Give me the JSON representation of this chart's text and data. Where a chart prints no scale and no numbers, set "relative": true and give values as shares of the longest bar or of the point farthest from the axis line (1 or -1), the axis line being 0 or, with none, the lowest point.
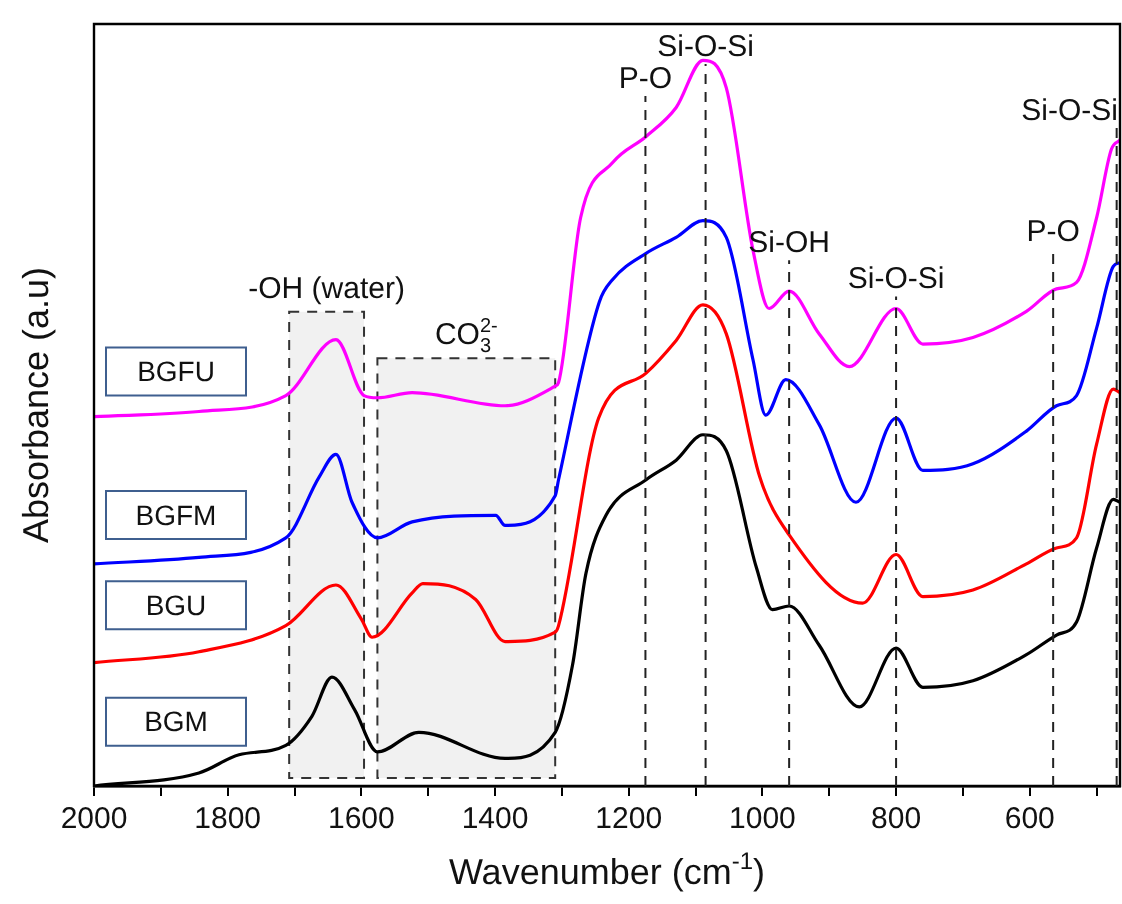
{
  "chart_data": {
    "type": "line",
    "relative": true,
    "xlabel": "Wavenumber (cm$^{-1}$)",
    "ylabel": "Absorbance (a.u)",
    "xlim": [
      2000,
      465
    ],
    "xticks": [
      2000,
      {
        "value": 1900,
        "label": null
      },
      1800,
      {
        "value": 1700,
        "label": null
      },
      1600,
      {
        "value": 1500,
        "label": null
      },
      1400,
      {
        "value": 1300,
        "label": null
      },
      1200,
      {
        "value": 1100,
        "label": null
      },
      1000,
      {
        "value": 900,
        "label": null
      },
      800,
      {
        "value": 700,
        "label": null
      },
      600,
      {
        "value": 500,
        "label": null
      }
    ],
    "grid": false,
    "marker": "none",
    "line_style": "solid",
    "series": [
      {
        "name": "BGFU",
        "color": "#ff00ff",
        "x": [
          2000,
          1843,
          1713,
          1638,
          1596,
          1576,
          1524,
          1385,
          1310,
          1305,
          1272,
          1224,
          1174,
          1129,
          1089,
          1054,
          1014,
          990,
          960,
          915,
          870,
          800,
          760,
          685,
          605,
          560,
          530,
          500,
          478,
          465
        ],
        "values": [
          0.509,
          0.516,
          0.538,
          0.615,
          0.538,
          0.535,
          0.542,
          0.524,
          0.551,
          0.556,
          0.783,
          0.859,
          0.895,
          0.935,
          1.0,
          0.962,
          0.738,
          0.658,
          0.682,
          0.623,
          0.578,
          0.658,
          0.609,
          0.618,
          0.654,
          0.685,
          0.694,
          0.783,
          0.877,
          0.89
        ]
      },
      {
        "name": "BGFM",
        "color": "#0000ff",
        "x": [
          2000,
          1843,
          1713,
          1663,
          1638,
          1614,
          1576,
          1524,
          1399,
          1385,
          1310,
          1305,
          1244,
          1224,
          1174,
          1129,
          1089,
          1054,
          1014,
          995,
          965,
          915,
          860,
          800,
          760,
          685,
          605,
          560,
          530,
          500,
          475,
          465
        ],
        "values": [
          0.306,
          0.315,
          0.342,
          0.426,
          0.457,
          0.391,
          0.342,
          0.364,
          0.373,
          0.359,
          0.4,
          0.422,
          0.667,
          0.698,
          0.734,
          0.756,
          0.779,
          0.756,
          0.587,
          0.511,
          0.56,
          0.498,
          0.391,
          0.507,
          0.435,
          0.444,
          0.489,
          0.524,
          0.538,
          0.631,
          0.716,
          0.721
        ]
      },
      {
        "name": "BGU",
        "color": "#ff0000",
        "x": [
          2000,
          1843,
          1713,
          1638,
          1600,
          1584,
          1524,
          1508,
          1429,
          1385,
          1310,
          1305,
          1245,
          1174,
          1129,
          1089,
          1054,
          1004,
          960,
          850,
          800,
          760,
          685,
          605,
          560,
          530,
          500,
          475,
          465
        ],
        "values": [
          0.17,
          0.185,
          0.221,
          0.277,
          0.23,
          0.205,
          0.266,
          0.279,
          0.257,
          0.199,
          0.212,
          0.221,
          0.507,
          0.569,
          0.614,
          0.663,
          0.623,
          0.426,
          0.346,
          0.252,
          0.319,
          0.261,
          0.27,
          0.306,
          0.328,
          0.342,
          0.471,
          0.547,
          0.542
        ]
      },
      {
        "name": "BGM",
        "color": "#000000",
        "x": [
          2000,
          1843,
          1783,
          1713,
          1674,
          1644,
          1610,
          1576,
          1514,
          1385,
          1310,
          1284,
          1264,
          1234,
          1174,
          1129,
          1089,
          1054,
          1009,
          985,
          960,
          915,
          855,
          800,
          760,
          685,
          605,
          560,
          530,
          500,
          475,
          465
        ],
        "values": [
          0.0,
          0.018,
          0.043,
          0.056,
          0.096,
          0.15,
          0.105,
          0.047,
          0.074,
          0.038,
          0.074,
          0.167,
          0.293,
          0.373,
          0.422,
          0.449,
          0.484,
          0.462,
          0.301,
          0.243,
          0.248,
          0.194,
          0.109,
          0.19,
          0.136,
          0.145,
          0.181,
          0.208,
          0.226,
          0.328,
          0.395,
          0.391
        ]
      }
    ],
    "ref_lines": [
      {
        "axis": "x",
        "value": 1175,
        "label": "P-O",
        "line_style": "dashed"
      },
      {
        "axis": "x",
        "value": 1085,
        "label": "Si-O-Si",
        "line_style": "dashed"
      },
      {
        "axis": "x",
        "value": 960,
        "label": "Si-OH",
        "line_style": "dashed"
      },
      {
        "axis": "x",
        "value": 800,
        "label": "Si-O-Si",
        "line_style": "dashed"
      },
      {
        "axis": "x",
        "value": 565,
        "label": "P-O",
        "line_style": "dashed"
      },
      {
        "axis": "x",
        "value": 470,
        "label": "Si-O-Si",
        "line_style": "dashed"
      }
    ],
    "bands": [
      {
        "axis": "x",
        "from": 1708,
        "to": 1596,
        "label": "-OH (water)"
      },
      {
        "axis": "x",
        "from": 1576,
        "to": 1310,
        "label": "CO$_{3}$$^{2-}$"
      }
    ]
  }
}
